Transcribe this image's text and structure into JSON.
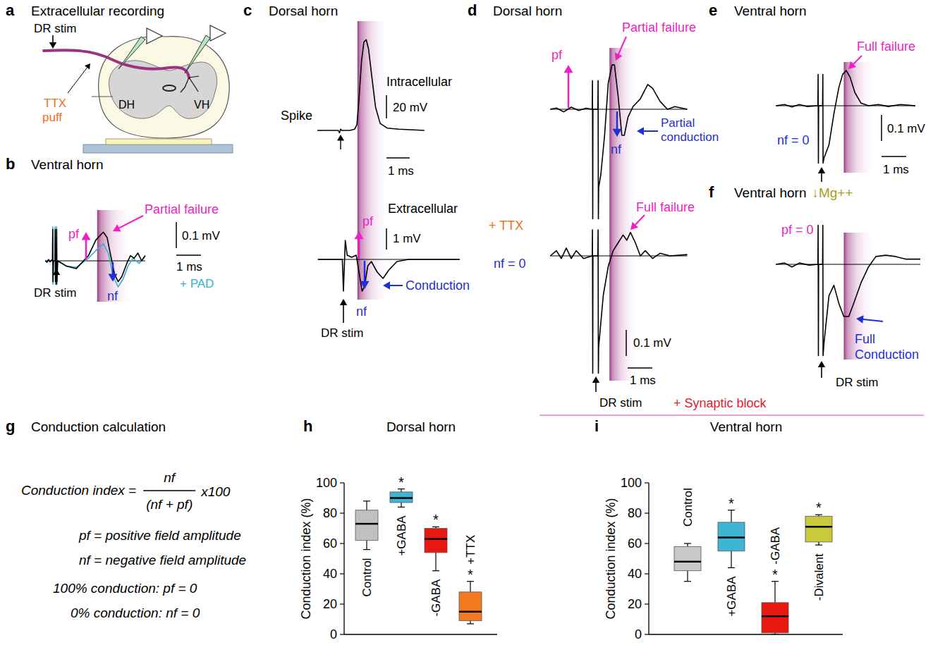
{
  "panels": {
    "a": {
      "letter": "a",
      "title": "Extracellular recording",
      "texts": {
        "stim": "DR stim",
        "ttx": "TTX",
        "puff": "puff",
        "dh": "DH",
        "vh": "VH"
      }
    },
    "b": {
      "letter": "b",
      "title": "Ventral horn",
      "window": [
        1.65,
        2.9
      ],
      "scale": {
        "mv": 0.1,
        "mv_label": "0.1 mV",
        "ms": 1,
        "ms_label": "1 ms"
      },
      "texts": {
        "pf": "pf",
        "nf": "nf",
        "annotation": "Partial failure",
        "stim": "DR stim"
      },
      "traces": [
        {
          "color": "#000000",
          "t": [
            -0.45,
            -0.38,
            -0.32,
            -0.26,
            -0.2,
            -0.16,
            -0.15,
            -0.14,
            -0.12,
            -0.06,
            -0.05,
            -0.04,
            -0.02,
            0,
            0.01,
            0.02,
            0.05,
            0.4,
            0.8,
            1.3,
            1.6,
            1.9,
            2.05,
            2.2,
            2.35,
            2.5,
            2.65,
            2.85,
            3.0,
            3.15,
            3.3,
            3.45,
            3.6
          ],
          "v": [
            0,
            -0.005,
            0.005,
            -0.004,
            0.003,
            0,
            0.12,
            -0.08,
            0,
            0,
            0.12,
            -0.08,
            0,
            0,
            0.12,
            -0.08,
            0,
            -0.02,
            -0.03,
            0.02,
            0.08,
            0.11,
            0.09,
            0.02,
            -0.05,
            -0.08,
            -0.06,
            -0.01,
            0.02,
            0.01,
            0.03,
            0,
            0.02
          ]
        },
        {
          "name": "+ PAD",
          "color": "#3aaed0",
          "t": [
            -0.45,
            -0.38,
            -0.32,
            -0.26,
            -0.2,
            -0.16,
            -0.15,
            -0.14,
            -0.12,
            -0.06,
            -0.05,
            -0.04,
            -0.02,
            0,
            0.01,
            0.02,
            0.05,
            0.4,
            0.8,
            1.3,
            1.6,
            1.9,
            2.1,
            2.3,
            2.5,
            2.7,
            2.9,
            3.1,
            3.35,
            3.6
          ],
          "v": [
            0.003,
            -0.004,
            0.004,
            -0.003,
            0.002,
            0,
            0.13,
            -0.09,
            0,
            0,
            0.13,
            -0.09,
            0,
            0,
            0.13,
            -0.09,
            0,
            -0.02,
            -0.025,
            0.01,
            0.04,
            0.065,
            0.03,
            -0.06,
            -0.1,
            -0.07,
            -0.02,
            0.01,
            -0.01,
            0.02
          ]
        }
      ]
    },
    "c": {
      "letter": "c",
      "title": "Dorsal horn",
      "window": [
        0.6,
        1.8
      ],
      "scale": {
        "ms": 1,
        "ms_label": "1 ms"
      },
      "texts": {
        "spike": "Spike",
        "pf": "pf",
        "nf": "nf",
        "annotation": "Conduction",
        "stim": "DR stim"
      },
      "traces": [
        {
          "name": "Intracellular",
          "color": "#000000",
          "scale": {
            "mv": 20,
            "mv_label": "20 mV"
          },
          "t": [
            -1,
            -0.1,
            -0.05,
            0,
            0.05,
            0.4,
            0.6,
            0.7,
            0.8,
            0.9,
            1.0,
            1.1,
            1.2,
            1.35,
            1.5,
            1.7,
            2.0,
            2.5,
            3.6
          ],
          "v": [
            0,
            0,
            -2,
            1,
            0,
            0,
            1,
            5,
            30,
            60,
            76,
            78,
            70,
            45,
            20,
            6,
            2,
            1,
            0
          ]
        },
        {
          "name": "Extracellular",
          "color": "#000000",
          "scale": {
            "mv": 1,
            "mv_label": "1 mV"
          },
          "t": [
            -1.1,
            -0.3,
            -0.05,
            0,
            0.08,
            0.16,
            0.35,
            0.55,
            0.7,
            0.8,
            0.9,
            1.05,
            1.2,
            1.45,
            1.7,
            1.95,
            2.3,
            2.8,
            5
          ],
          "v": [
            0,
            0,
            0,
            -1.5,
            0.9,
            0.2,
            0.1,
            0.2,
            -0.8,
            -1.5,
            -1.3,
            -0.3,
            -0.1,
            -0.6,
            -0.9,
            -0.5,
            -0.1,
            0,
            0
          ]
        }
      ]
    },
    "d": {
      "letter": "d",
      "title": "Dorsal horn",
      "window": [
        0.55,
        1.6
      ],
      "scale": {
        "mv": 0.1,
        "mv_label": "0.1 mV",
        "ms": 1,
        "ms_label": "1 ms"
      },
      "texts": {
        "pf": "pf",
        "nf": "nf",
        "annotation_top": "Partial failure",
        "conduction_top": "Partial conduction",
        "condition": "+ TTX",
        "nf_zero": "nf = 0",
        "annotation_bottom": "Full failure",
        "stim": "DR stim"
      },
      "traces": [
        {
          "color": "#000000",
          "t": [
            -1.85,
            -1.6,
            -1.3,
            -1.0,
            -0.7,
            -0.4,
            -0.15,
            -0.14,
            -0.13,
            -0.12,
            0.08,
            0.09,
            0.1,
            0.11,
            0.2,
            0.35,
            0.5,
            0.65,
            0.75,
            0.9,
            1.05,
            1.15,
            1.3,
            1.5,
            1.8,
            2.1,
            2.3,
            2.6,
            2.9,
            3.2,
            3.7
          ],
          "v": [
            0,
            0.005,
            -0.01,
            0.008,
            -0.005,
            0.004,
            0,
            0.11,
            -0.42,
            0,
            0,
            0.11,
            -0.42,
            -0.3,
            -0.25,
            -0.1,
            0.1,
            0.17,
            0.17,
            0.05,
            -0.1,
            -0.1,
            -0.03,
            0.01,
            0.04,
            0.095,
            0.08,
            0.03,
            0,
            0.01,
            0
          ]
        },
        {
          "color": "#000000",
          "t": [
            -1.85,
            -1.6,
            -1.4,
            -1.2,
            -1.0,
            -0.8,
            -0.5,
            -0.15,
            -0.14,
            -0.13,
            -0.12,
            0.08,
            0.09,
            0.1,
            0.11,
            0.3,
            0.5,
            0.7,
            0.9,
            1.1,
            1.25,
            1.4,
            1.6,
            1.8,
            2.0,
            2.3,
            2.6,
            3.0,
            3.7
          ],
          "v": [
            0,
            0.02,
            -0.01,
            0.03,
            -0.01,
            0.02,
            -0.01,
            0,
            0.1,
            -0.45,
            0,
            0,
            0.1,
            -0.45,
            -0.35,
            -0.15,
            -0.04,
            0.02,
            0.05,
            0.08,
            0.06,
            0.09,
            0.05,
            0,
            0.02,
            -0.01,
            0.01,
            0,
            0.005
          ]
        }
      ]
    },
    "e": {
      "letter": "e",
      "title": "Ventral horn",
      "window": [
        0.9,
        2.0
      ],
      "scale": {
        "mv": 0.1,
        "mv_label": "0.1 mV",
        "ms": 1,
        "ms_label": "1 ms"
      },
      "texts": {
        "annotation": "Full failure",
        "nf_zero": "nf = 0"
      },
      "traces": [
        {
          "color": "#000000",
          "t": [
            -1.85,
            -1.5,
            -1.2,
            -0.9,
            -0.6,
            -0.15,
            -0.14,
            -0.13,
            -0.12,
            0.04,
            0.05,
            0.06,
            0.1,
            0.3,
            0.5,
            0.7,
            0.85,
            1.0,
            1.15,
            1.35,
            1.6,
            1.9,
            2.3,
            2.7,
            3.2,
            3.8
          ],
          "v": [
            0,
            0.005,
            -0.005,
            0.005,
            -0.003,
            0,
            0.12,
            -0.22,
            0,
            0,
            0.12,
            -0.22,
            -0.2,
            -0.15,
            -0.03,
            0.07,
            0.12,
            0.135,
            0.11,
            0.05,
            0.01,
            0,
            0.005,
            -0.003,
            0.005,
            0
          ]
        }
      ]
    },
    "f": {
      "letter": "f",
      "title": "Ventral horn",
      "title_suffix": "↓Mg++",
      "window": [
        0.9,
        2.0
      ],
      "texts": {
        "pf_zero": "pf = 0",
        "annotation": "Full Conduction",
        "stim": "DR stim"
      },
      "traces": [
        {
          "color": "#000000",
          "t": [
            -1.85,
            -1.5,
            -1.2,
            -0.9,
            -0.5,
            -0.15,
            -0.14,
            -0.13,
            -0.12,
            0.04,
            0.05,
            0.06,
            0.1,
            0.3,
            0.5,
            0.7,
            0.9,
            1.1,
            1.3,
            1.6,
            1.9,
            2.2,
            2.6,
            3.0,
            3.4,
            4.0
          ],
          "v": [
            0,
            0.005,
            -0.01,
            0.005,
            -0.003,
            0,
            0.15,
            -0.35,
            0,
            0,
            0.15,
            -0.35,
            -0.3,
            -0.12,
            -0.08,
            -0.15,
            -0.2,
            -0.2,
            -0.15,
            -0.07,
            -0.01,
            0.03,
            0.035,
            0.03,
            0.02,
            0.02
          ]
        }
      ]
    },
    "g": {
      "letter": "g",
      "title": "Conduction calculation",
      "formula": {
        "lhs": "Conduction index =",
        "numerator": "nf",
        "denominator": "(nf + pf)",
        "factor": "x100"
      },
      "definitions": [
        "pf = positive field amplitude",
        "nf = negative field amplitude"
      ],
      "limits": [
        "100% conduction: pf = 0",
        "0% conduction: nf = 0"
      ]
    }
  },
  "annotations": {
    "synaptic_block": "+ Synaptic block"
  },
  "chart_data": [
    {
      "type": "box",
      "letter": "h",
      "title": "Dorsal horn",
      "y_label": "Conduction index (%)",
      "categories": [
        "Control",
        "+GABA",
        "-GABA",
        "+TTX"
      ],
      "colors": [
        "#c0c0c0",
        "#3db5d3",
        "#e8170f",
        "#f57a1f"
      ],
      "min": [
        56,
        84,
        42,
        7
      ],
      "q1": [
        62,
        87,
        54,
        9
      ],
      "median": [
        73,
        90,
        63,
        15
      ],
      "q3": [
        82,
        94,
        70,
        28
      ],
      "max": [
        88,
        96,
        71,
        35
      ],
      "significance": [
        null,
        "*",
        "*",
        "*"
      ],
      "ylim": [
        0,
        100
      ],
      "yticks": [
        0,
        20,
        40,
        60,
        80,
        100
      ]
    },
    {
      "type": "box",
      "letter": "i",
      "title": "Ventral horn",
      "y_label": "Conduction index (%)",
      "categories": [
        "Control",
        "+GABA",
        "-GABA",
        "-Divalent"
      ],
      "colors": [
        "#c8c8c8",
        "#3db5d3",
        "#e8170f",
        "#c9c93c"
      ],
      "min": [
        35,
        44,
        0,
        59
      ],
      "q1": [
        42,
        55,
        1,
        61
      ],
      "median": [
        48,
        64,
        12,
        71
      ],
      "q3": [
        58,
        74,
        21,
        78
      ],
      "max": [
        60,
        82,
        35,
        79
      ],
      "significance": [
        null,
        "*",
        "*",
        "*"
      ],
      "ylim": [
        0,
        100
      ],
      "yticks": [
        0,
        20,
        40,
        60,
        80,
        100
      ]
    }
  ]
}
